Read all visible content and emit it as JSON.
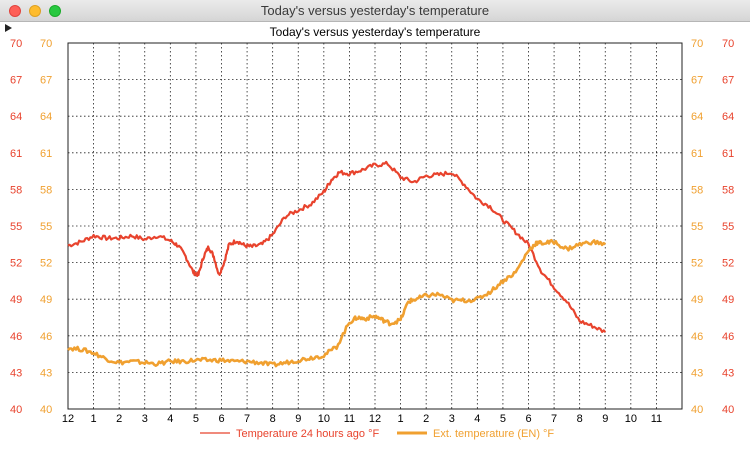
{
  "window": {
    "title": "Today's versus yesterday's temperature"
  },
  "chart_data": {
    "type": "line",
    "title": "Today's versus yesterday's temperature",
    "ylim": [
      40,
      70
    ],
    "y_ticks": [
      40,
      43,
      46,
      49,
      52,
      55,
      58,
      61,
      64,
      67,
      70
    ],
    "x_tick_labels": [
      "12",
      "1",
      "2",
      "3",
      "4",
      "5",
      "6",
      "7",
      "8",
      "9",
      "10",
      "11",
      "12",
      "1",
      "2",
      "3",
      "4",
      "5",
      "6",
      "7",
      "8",
      "9",
      "10",
      "11"
    ],
    "grid": true,
    "legend_position": "bottom",
    "left_axis_color": "#e8432d",
    "right_axis_color": "#f0a030",
    "series": [
      {
        "name": "Temperature 24 hours ago °F",
        "color": "#e8432d",
        "x": [
          0,
          0.5,
          1,
          1.5,
          2,
          2.5,
          3,
          3.5,
          4,
          4.3,
          4.6,
          4.9,
          5.1,
          5.3,
          5.5,
          5.7,
          5.9,
          6.1,
          6.3,
          6.6,
          6.9,
          7.2,
          7.6,
          8,
          8.5,
          9,
          9.5,
          10,
          10.3,
          10.6,
          11,
          11.5,
          12,
          12.5,
          13,
          13.5,
          14,
          14.5,
          15,
          15.5,
          16,
          16.5,
          17,
          17.5,
          18,
          18.5,
          19,
          19.5,
          20,
          20.5,
          21
        ],
        "y": [
          53.4,
          53.7,
          54.2,
          54.0,
          54.0,
          54.2,
          53.9,
          54.2,
          53.8,
          53.4,
          52.5,
          51.2,
          51.0,
          52.5,
          53.3,
          52.5,
          51.0,
          52.0,
          53.5,
          53.8,
          53.4,
          53.3,
          53.5,
          54.3,
          55.8,
          56.3,
          56.8,
          57.8,
          58.8,
          59.4,
          59.3,
          59.6,
          60.0,
          60.1,
          59.0,
          58.6,
          59.1,
          59.2,
          59.4,
          58.4,
          57.2,
          56.6,
          55.5,
          54.5,
          53.5,
          51.3,
          50.0,
          48.8,
          47.2,
          46.8,
          46.3
        ]
      },
      {
        "name": "Ext. temperature (EN) °F",
        "color": "#f0a030",
        "x": [
          0,
          0.5,
          1,
          1.5,
          2,
          2.5,
          3,
          3.5,
          4,
          4.5,
          5,
          5.5,
          6,
          6.5,
          7,
          7.5,
          8,
          8.5,
          9,
          9.5,
          10,
          10.5,
          11,
          11.3,
          11.6,
          12,
          12.3,
          12.6,
          13,
          13.3,
          13.6,
          14,
          14.5,
          15,
          15.5,
          16,
          16.5,
          17,
          17.5,
          18,
          18.3,
          18.6,
          19,
          19.5,
          20,
          20.5,
          21
        ],
        "y": [
          45.0,
          44.9,
          44.6,
          44.1,
          43.8,
          43.9,
          43.8,
          43.7,
          43.9,
          43.9,
          44.0,
          44.0,
          44.0,
          43.9,
          43.9,
          43.8,
          43.6,
          43.8,
          44.0,
          44.2,
          44.4,
          45.1,
          47.1,
          47.5,
          47.4,
          47.6,
          47.3,
          47.0,
          47.3,
          48.8,
          49.0,
          49.3,
          49.4,
          48.9,
          48.9,
          49.0,
          49.6,
          50.5,
          51.2,
          53.0,
          53.6,
          53.6,
          53.7,
          53.1,
          53.5,
          53.7,
          53.5
        ]
      }
    ]
  }
}
